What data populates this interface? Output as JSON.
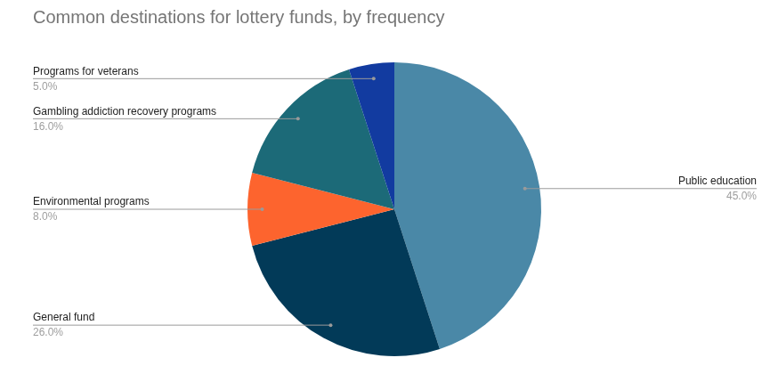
{
  "chart_data": {
    "type": "pie",
    "title": "Common destinations for lottery funds, by frequency",
    "categories": [
      "Public education",
      "General fund",
      "Environmental programs",
      "Gambling addiction recovery programs",
      "Programs for veterans"
    ],
    "values": [
      45,
      26,
      8,
      16,
      5
    ],
    "value_labels": [
      "45.0%",
      "26.0%",
      "8.0%",
      "16.0%",
      "5.0%"
    ],
    "colors": [
      "#4a88a7",
      "#023a58",
      "#fd642e",
      "#1c6a78",
      "#123ba0"
    ],
    "data_labels": true
  }
}
